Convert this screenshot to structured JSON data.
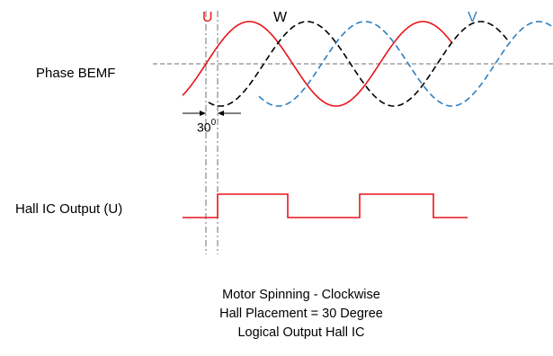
{
  "labels": {
    "phase_bemf": "Phase BEMF",
    "hall_output": "Hall IC Output (U)",
    "angle_value": "30",
    "angle_unit": "0"
  },
  "phases": [
    {
      "tag": "U",
      "color": "#e8141b",
      "style": "solid"
    },
    {
      "tag": "W",
      "color": "#000000",
      "style": "dashed"
    },
    {
      "tag": "V",
      "color": "#2e7fc0",
      "style": "dashed"
    }
  ],
  "caption": [
    "Motor Spinning - Clockwise",
    "Hall Placement = 30 Degree",
    "Logical Output Hall IC"
  ],
  "colors": {
    "axis": "#707070",
    "hall_signal": "#e8141b"
  }
}
